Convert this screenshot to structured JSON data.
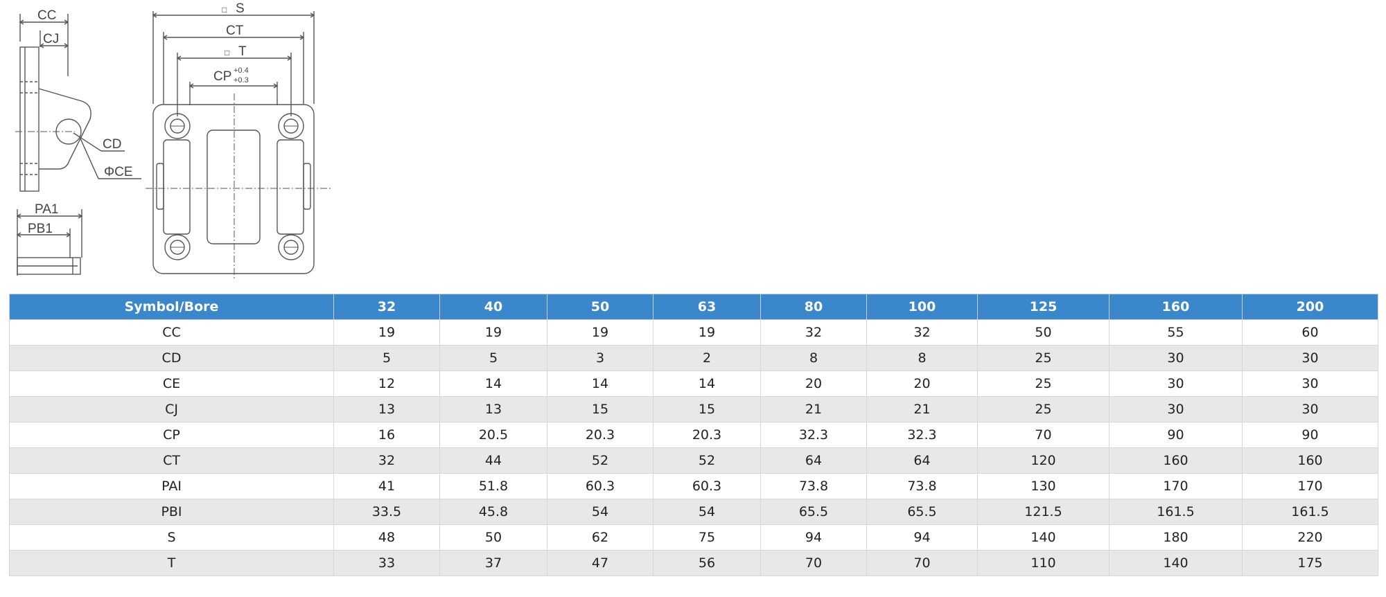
{
  "drawing": {
    "labels": {
      "cc": "CC",
      "cj": "CJ",
      "cd": "CD",
      "ce": "ΦCE",
      "pa1": "PA1",
      "pb1": "PB1",
      "s": "S",
      "ct": "CT",
      "t": "T",
      "cp": "CP",
      "cp_tol_upper": "+0.4",
      "cp_tol_lower": "+0.3",
      "square_symbol": "□"
    }
  },
  "table": {
    "headers": [
      "Symbol/Bore",
      "32",
      "40",
      "50",
      "63",
      "80",
      "100",
      "125",
      "160",
      "200"
    ],
    "rows": [
      [
        "CC",
        "19",
        "19",
        "19",
        "19",
        "32",
        "32",
        "50",
        "55",
        "60"
      ],
      [
        "CD",
        "5",
        "5",
        "3",
        "2",
        "8",
        "8",
        "25",
        "30",
        "30"
      ],
      [
        "CE",
        "12",
        "14",
        "14",
        "14",
        "20",
        "20",
        "25",
        "30",
        "30"
      ],
      [
        "CJ",
        "13",
        "13",
        "15",
        "15",
        "21",
        "21",
        "25",
        "30",
        "30"
      ],
      [
        "CP",
        "16",
        "20.5",
        "20.3",
        "20.3",
        "32.3",
        "32.3",
        "70",
        "90",
        "90"
      ],
      [
        "CT",
        "32",
        "44",
        "52",
        "52",
        "64",
        "64",
        "120",
        "160",
        "160"
      ],
      [
        "PAI",
        "41",
        "51.8",
        "60.3",
        "60.3",
        "73.8",
        "73.8",
        "130",
        "170",
        "170"
      ],
      [
        "PBI",
        "33.5",
        "45.8",
        "54",
        "54",
        "65.5",
        "65.5",
        "121.5",
        "161.5",
        "161.5"
      ],
      [
        "S",
        "48",
        "50",
        "62",
        "75",
        "94",
        "94",
        "140",
        "180",
        "220"
      ],
      [
        "T",
        "33",
        "37",
        "47",
        "56",
        "70",
        "70",
        "110",
        "140",
        "175"
      ]
    ]
  },
  "colors": {
    "header_bg": "#3a87cc",
    "stripe_bg": "#e8e8e8",
    "line": "#555555"
  }
}
